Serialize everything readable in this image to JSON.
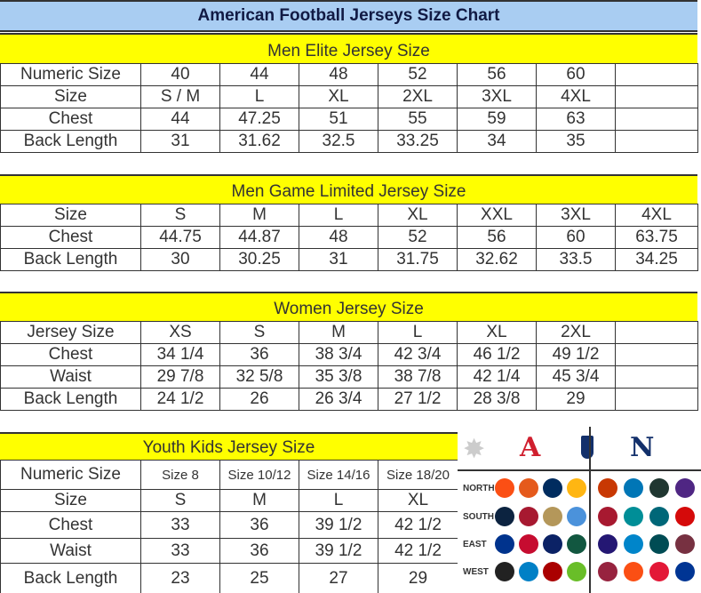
{
  "title": "American Football Jerseys Size Chart",
  "colors": {
    "title_band": "#a9cdf2",
    "section_header": "#ffff00",
    "title_text": "#111a44",
    "afc": "#d01f2e",
    "nfc": "#13306b"
  },
  "sections": [
    {
      "id": "men-elite",
      "title": "Men Elite Jersey Size",
      "rows": [
        [
          "Numeric Size",
          "40",
          "44",
          "48",
          "52",
          "56",
          "60",
          ""
        ],
        [
          "Size",
          "S / M",
          "L",
          "XL",
          "2XL",
          "3XL",
          "4XL",
          ""
        ],
        [
          "Chest",
          "44",
          "47.25",
          "51",
          "55",
          "59",
          "63",
          ""
        ],
        [
          "Back Length",
          "31",
          "31.62",
          "32.5",
          "33.25",
          "34",
          "35",
          ""
        ]
      ]
    },
    {
      "id": "men-game-limited",
      "title": "Men Game Limited Jersey Size",
      "rows": [
        [
          "Size",
          "S",
          "M",
          "L",
          "XL",
          "XXL",
          "3XL",
          "4XL"
        ],
        [
          "Chest",
          "44.75",
          "44.87",
          "48",
          "52",
          "56",
          "60",
          "63.75"
        ],
        [
          "Back Length",
          "30",
          "30.25",
          "31",
          "31.75",
          "32.62",
          "33.5",
          "34.25"
        ]
      ]
    },
    {
      "id": "women",
      "title": "Women Jersey Size",
      "rows": [
        [
          "Jersey Size",
          "XS",
          "S",
          "M",
          "L",
          "XL",
          "2XL",
          ""
        ],
        [
          "Chest",
          "34 1/4",
          "36",
          "38 3/4",
          "42 3/4",
          "46 1/2",
          "49 1/2",
          ""
        ],
        [
          "Waist",
          "29 7/8",
          "32 5/8",
          "35 3/8",
          "38 7/8",
          "42 1/4",
          "45 3/4",
          ""
        ],
        [
          "Back Length",
          "24 1/2",
          "26",
          "26 3/4",
          "27 1/2",
          "28 3/8",
          "29",
          ""
        ]
      ]
    },
    {
      "id": "youth",
      "title": "Youth Kids Jersey Size",
      "rows": [
        [
          "Numeric Size",
          "Size 8",
          "Size 10/12",
          "Size 14/16",
          "Size 18/20"
        ],
        [
          "Size",
          "S",
          "M",
          "L",
          "XL"
        ],
        [
          "Chest",
          "33",
          "36",
          "39 1/2",
          "42 1/2"
        ],
        [
          "Waist",
          "33",
          "36",
          "39 1/2",
          "42 1/2"
        ],
        [
          "Back Length",
          "23",
          "25",
          "27",
          "29"
        ]
      ]
    }
  ],
  "league_logos": {
    "afc_letter": "A",
    "nfc_letter": "N",
    "divisions": [
      "NORTH",
      "SOUTH",
      "EAST",
      "WEST"
    ],
    "afc_team_colors": [
      [
        "#fb4f14",
        "#e55a1c",
        "#002c5f",
        "#ffb612"
      ],
      [
        "#0c2340",
        "#a71930",
        "#b4975a",
        "#4b92db"
      ],
      [
        "#00338d",
        "#c60c30",
        "#0b2265",
        "#125740"
      ],
      [
        "#222222",
        "#0080c6",
        "#aa0000",
        "#69be28"
      ]
    ],
    "nfc_team_colors": [
      [
        "#c83803",
        "#0076b6",
        "#203731",
        "#4f2683"
      ],
      [
        "#a71930",
        "#008e97",
        "#006778",
        "#d50a0a"
      ],
      [
        "#241773",
        "#0085ca",
        "#004c54",
        "#773141"
      ],
      [
        "#97233f",
        "#fb4f14",
        "#e31837",
        "#003594"
      ]
    ]
  }
}
